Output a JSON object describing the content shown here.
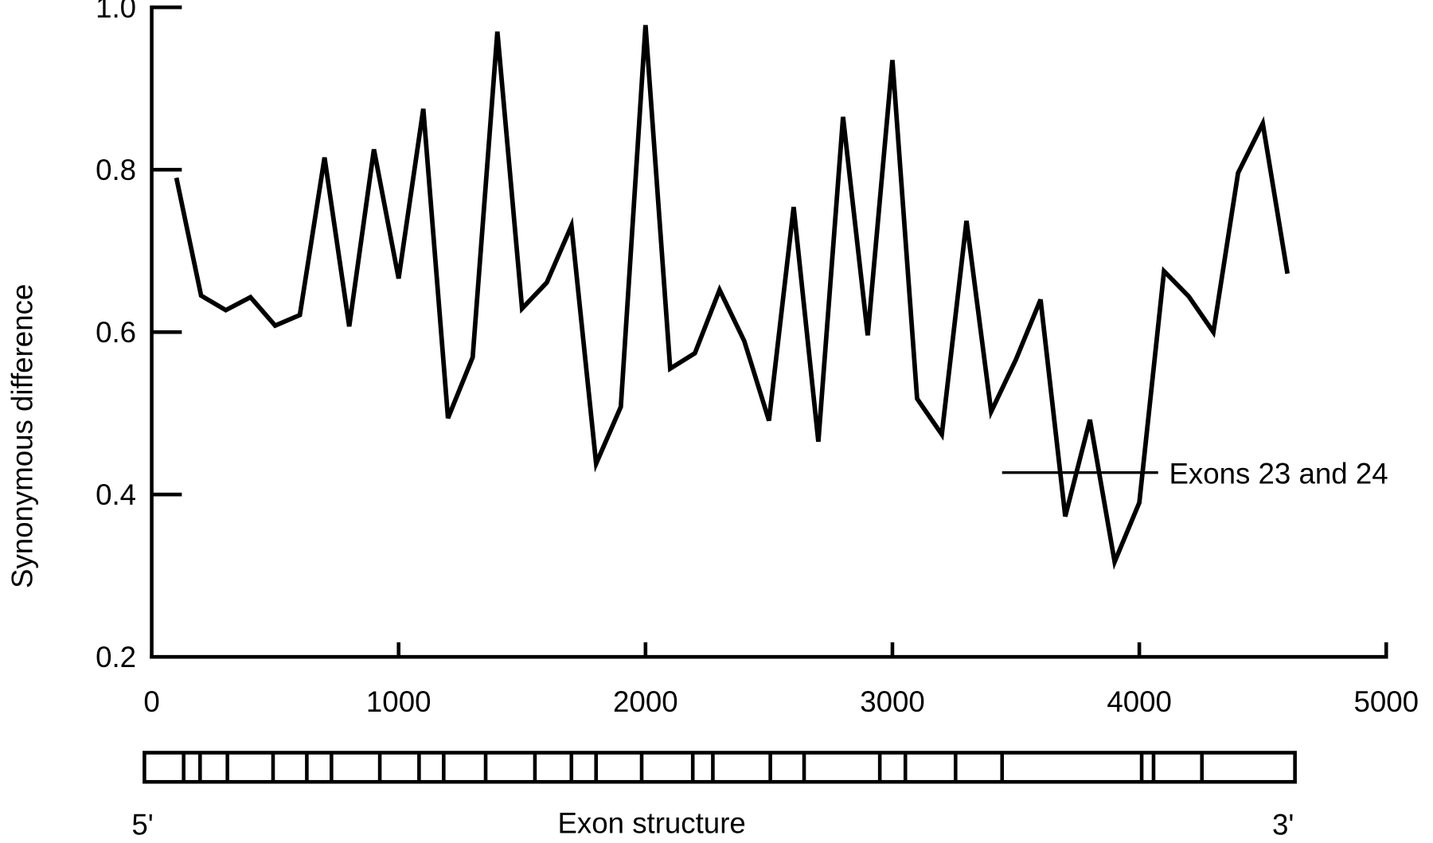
{
  "chart_data": {
    "type": "line",
    "y_label": "Synonymous difference",
    "annotation": "Exons 23 and 24",
    "x": [
      100,
      200,
      300,
      400,
      500,
      600,
      700,
      800,
      900,
      1000,
      1100,
      1200,
      1300,
      1400,
      1500,
      1600,
      1700,
      1800,
      1900,
      2000,
      2100,
      2200,
      2300,
      2400,
      2500,
      2600,
      2700,
      2800,
      2900,
      3000,
      3100,
      3200,
      3300,
      3400,
      3500,
      3600,
      3700,
      3800,
      3900,
      4000,
      4100,
      4200,
      4300,
      4400,
      4500,
      4600
    ],
    "series": [
      {
        "color": "#000000",
        "values": [
          0.79,
          0.645,
          0.627,
          0.643,
          0.608,
          0.621,
          0.815,
          0.607,
          0.825,
          0.666,
          0.875,
          0.494,
          0.569,
          0.97,
          0.629,
          0.661,
          0.731,
          0.438,
          0.508,
          0.978,
          0.555,
          0.574,
          0.652,
          0.589,
          0.491,
          0.754,
          0.465,
          0.865,
          0.596,
          0.935,
          0.518,
          0.474,
          0.737,
          0.502,
          0.566,
          0.64,
          0.373,
          0.492,
          0.317,
          0.39,
          0.675,
          0.644,
          0.6,
          0.796,
          0.857,
          0.672
        ]
      }
    ],
    "xlim": [
      0,
      5000
    ],
    "xticks": [
      0,
      1000,
      2000,
      3000,
      4000,
      5000
    ],
    "ylim": [
      0.2,
      1.0
    ],
    "yticks": [
      0.2,
      0.4,
      0.6,
      0.8,
      {
        "value": 1.0,
        "label": "1.0"
      }
    ]
  },
  "exon_structure": {
    "label": "Exon structure",
    "five_prime": "5'",
    "three_prime": "3'"
  }
}
